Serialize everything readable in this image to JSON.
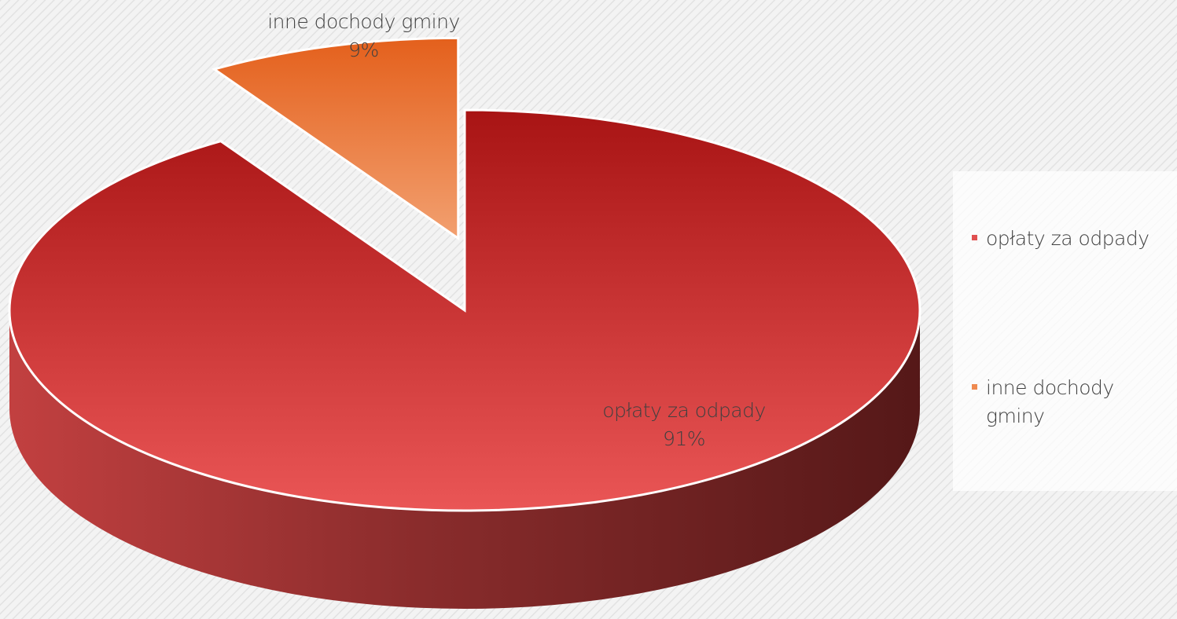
{
  "chart_data": {
    "type": "pie",
    "categories": [
      "opłaty za odpady",
      "inne dochody gminy"
    ],
    "values": [
      91,
      9
    ],
    "value_labels": [
      "91%",
      "9%"
    ],
    "colors": [
      "#e05050",
      "#ef8a50"
    ],
    "legend": "right",
    "explode": [
      0,
      1
    ]
  }
}
